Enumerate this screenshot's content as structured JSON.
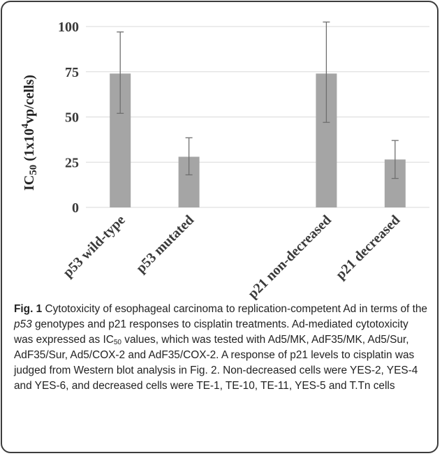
{
  "chart_data": {
    "type": "bar",
    "categories": [
      "p53 wild-type",
      "p53 mutated",
      "",
      "p21 non-decreased",
      "p21 decreased"
    ],
    "values": [
      74,
      28,
      null,
      74,
      26.5
    ],
    "error_low": [
      52,
      18,
      null,
      47,
      16
    ],
    "error_high": [
      97,
      38.5,
      null,
      102.5,
      37
    ],
    "ylabel": {
      "main": "IC",
      "sub": "50",
      "unit_open": " (1x10",
      "unit_sup": "4",
      "unit_close": "vp/cells)"
    },
    "ylim": [
      0,
      100
    ],
    "yticks": [
      0,
      25,
      50,
      75,
      100
    ],
    "grid": true,
    "bar_color": "#a5a5a5",
    "grid_color": "#d9d9d9",
    "error_color": "#6f6f6f"
  },
  "caption": {
    "fig_label": "Fig. 1",
    "segments": [
      {
        "t": " Cytotoxicity of esophageal carcinoma to replication-competent Ad in terms of the "
      },
      {
        "t": "p53",
        "i": true
      },
      {
        "t": " genotypes and p21 responses to cisplatin treatments. Ad-mediated cytotoxicity was expressed as IC"
      },
      {
        "t": "50",
        "sub": true
      },
      {
        "t": " values, which was tested with Ad5/MK, AdF35/MK, Ad5/Sur, AdF35/Sur, Ad5/COX-2 and AdF35/COX-2. A response of p21 levels to cisplatin was judged from Western blot analysis in Fig. 2. Non-decreased cells were YES-2, YES-4 and YES-6, and decreased cells were TE-1, TE-10, TE-11, YES-5 and T.Tn cells"
      }
    ]
  }
}
